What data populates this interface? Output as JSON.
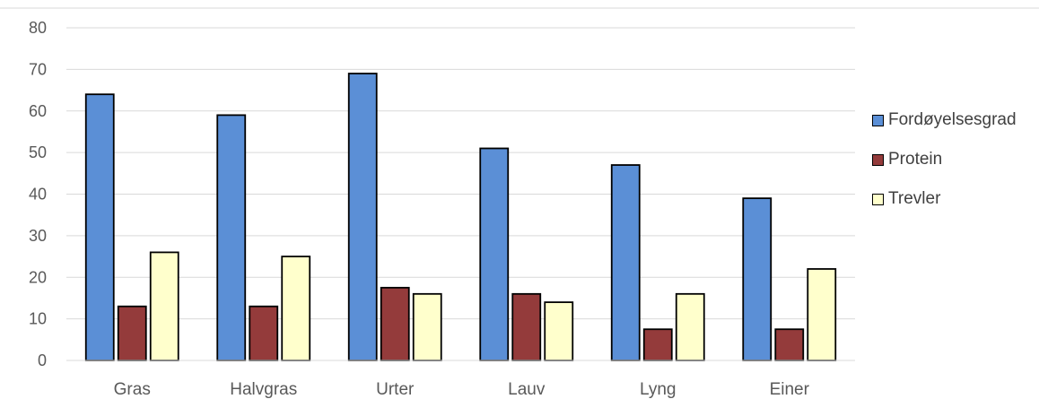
{
  "chart_data": {
    "type": "bar",
    "categories": [
      "Gras",
      "Halvgras",
      "Urter",
      "Lauv",
      "Lyng",
      "Einer"
    ],
    "series": [
      {
        "name": "Fordøyelsesgrad",
        "color": "#5b8fd6",
        "values": [
          64,
          59,
          69,
          51,
          47,
          39
        ]
      },
      {
        "name": "Protein",
        "color": "#943b3b",
        "values": [
          13,
          13,
          17.5,
          16,
          7.5,
          7.5
        ]
      },
      {
        "name": "Trevler",
        "color": "#ffffcc",
        "values": [
          26,
          25,
          16,
          14,
          16,
          22
        ]
      }
    ],
    "yticks": [
      0,
      10,
      20,
      30,
      40,
      50,
      60,
      70,
      80
    ],
    "ylim": [
      0,
      80
    ],
    "grid": true,
    "legend_position": "right"
  }
}
